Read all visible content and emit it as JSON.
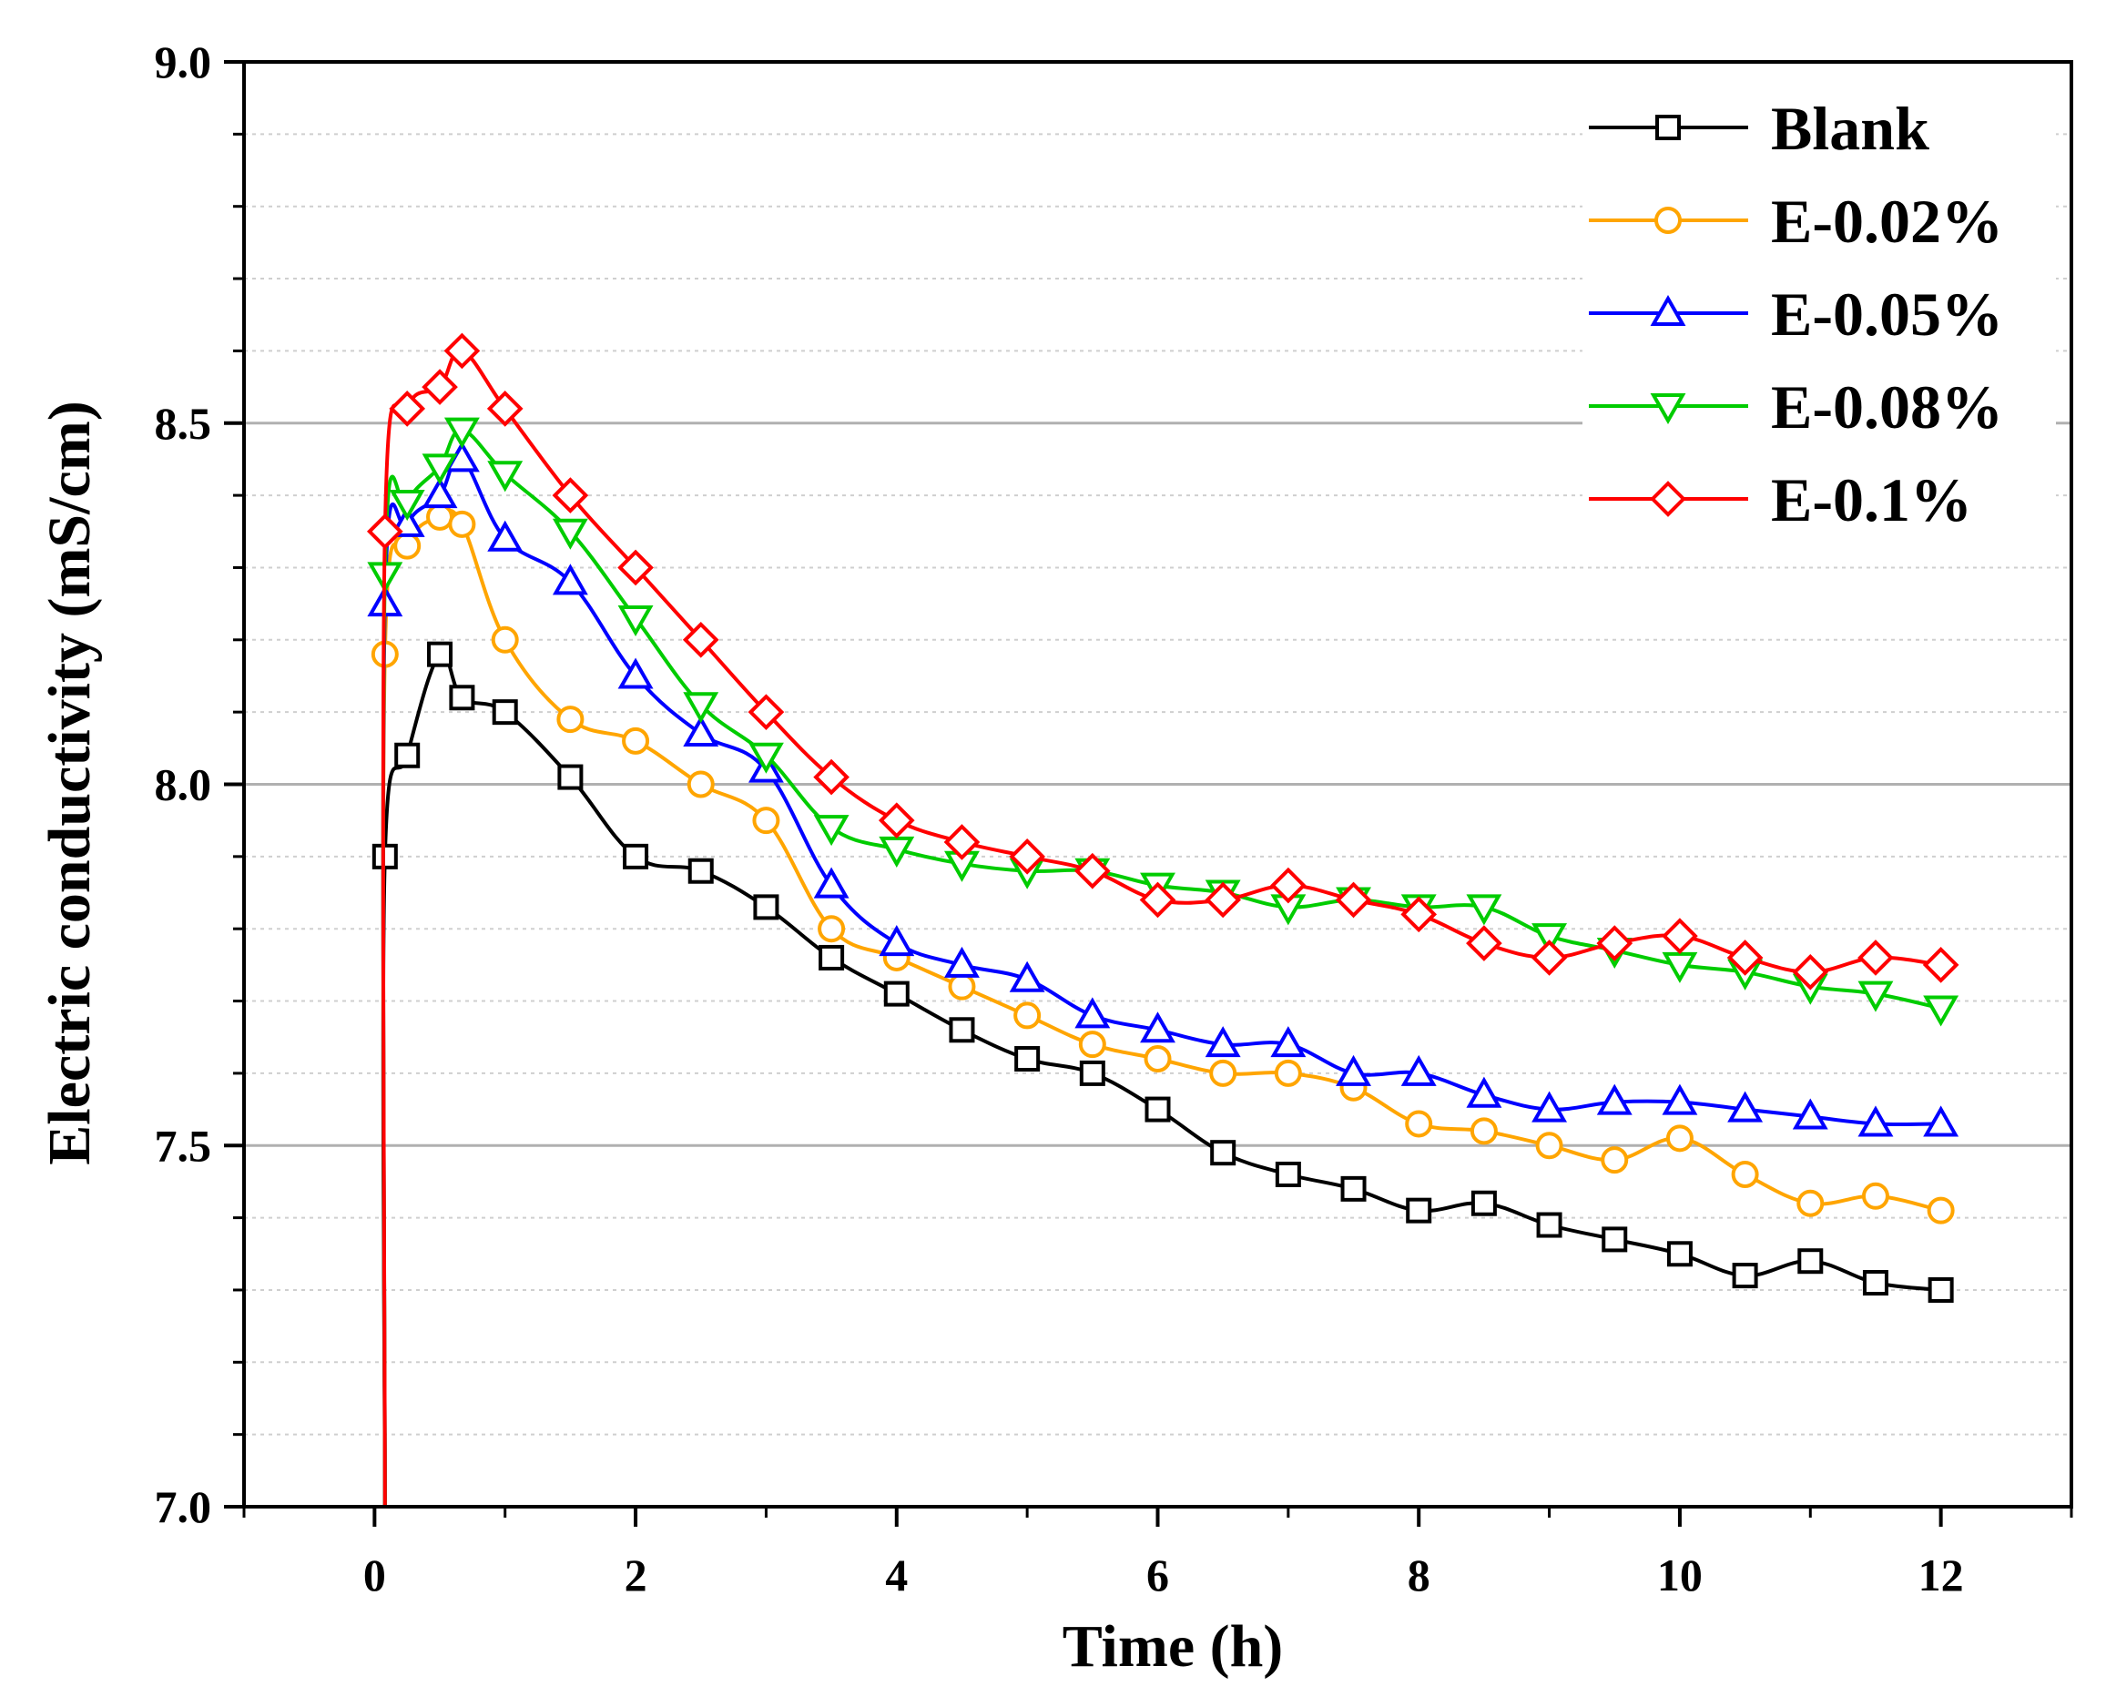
{
  "chart_data": {
    "type": "line",
    "title": "",
    "xlabel": "Time (h)",
    "ylabel": "Electric conductivity (mS/cm)",
    "xlim": [
      -1,
      13
    ],
    "ylim": [
      7.0,
      9.0
    ],
    "xticks": [
      0,
      2,
      4,
      6,
      8,
      10,
      12
    ],
    "xtick_labels": [
      "0",
      "2",
      "4",
      "6",
      "8",
      "10",
      "12"
    ],
    "yticks": [
      7.0,
      7.5,
      8.0,
      8.5,
      9.0
    ],
    "ytick_labels": [
      "7.0",
      "7.5",
      "8.0",
      "8.5",
      "9.0"
    ],
    "grid": {
      "major_y": true,
      "minor_y": true,
      "x": false
    },
    "legend_position": "top-right",
    "series": [
      {
        "name": "Blank",
        "color": "#000000",
        "marker": "square",
        "x": [
          0.08,
          0.25,
          0.5,
          0.67,
          1,
          1.5,
          2,
          2.5,
          3,
          3.5,
          4,
          4.5,
          5,
          5.5,
          6,
          6.5,
          7,
          7.5,
          8,
          8.5,
          9,
          9.5,
          10,
          10.5,
          11,
          11.5,
          12
        ],
        "y": [
          7.9,
          8.04,
          8.18,
          8.12,
          8.1,
          8.01,
          7.9,
          7.88,
          7.83,
          7.76,
          7.71,
          7.66,
          7.62,
          7.6,
          7.55,
          7.49,
          7.46,
          7.44,
          7.41,
          7.42,
          7.39,
          7.37,
          7.35,
          7.32,
          7.34,
          7.31,
          7.3
        ]
      },
      {
        "name": "E-0.02%",
        "color": "#FFA500",
        "marker": "circle",
        "x": [
          0.08,
          0.25,
          0.5,
          0.67,
          1,
          1.5,
          2,
          2.5,
          3,
          3.5,
          4,
          4.5,
          5,
          5.5,
          6,
          6.5,
          7,
          7.5,
          8,
          8.5,
          9,
          9.5,
          10,
          10.5,
          11,
          11.5,
          12
        ],
        "y": [
          8.18,
          8.33,
          8.37,
          8.36,
          8.2,
          8.09,
          8.06,
          8.0,
          7.95,
          7.8,
          7.76,
          7.72,
          7.68,
          7.64,
          7.62,
          7.6,
          7.6,
          7.58,
          7.53,
          7.52,
          7.5,
          7.48,
          7.51,
          7.46,
          7.42,
          7.43,
          7.41
        ]
      },
      {
        "name": "E-0.05%",
        "color": "#0000FF",
        "marker": "triangle-up",
        "x": [
          0.08,
          0.25,
          0.5,
          0.67,
          1,
          1.5,
          2,
          2.5,
          3,
          3.5,
          4,
          4.5,
          5,
          5.5,
          6,
          6.5,
          7,
          7.5,
          8,
          8.5,
          9,
          9.5,
          10,
          10.5,
          11,
          11.5,
          12
        ],
        "y": [
          8.25,
          8.36,
          8.4,
          8.45,
          8.34,
          8.28,
          8.15,
          8.07,
          8.02,
          7.86,
          7.78,
          7.75,
          7.73,
          7.68,
          7.66,
          7.64,
          7.64,
          7.6,
          7.6,
          7.57,
          7.55,
          7.56,
          7.56,
          7.55,
          7.54,
          7.53,
          7.53
        ]
      },
      {
        "name": "E-0.08%",
        "color": "#00CC00",
        "marker": "triangle-down",
        "x": [
          0.08,
          0.25,
          0.5,
          0.67,
          1,
          1.5,
          2,
          2.5,
          3,
          3.5,
          4,
          4.5,
          5,
          5.5,
          6,
          6.5,
          7,
          7.5,
          8,
          8.5,
          9,
          9.5,
          10,
          10.5,
          11,
          11.5,
          12
        ],
        "y": [
          8.29,
          8.39,
          8.44,
          8.49,
          8.43,
          8.35,
          8.23,
          8.11,
          8.04,
          7.94,
          7.91,
          7.89,
          7.88,
          7.88,
          7.86,
          7.85,
          7.83,
          7.84,
          7.83,
          7.83,
          7.79,
          7.77,
          7.75,
          7.74,
          7.72,
          7.71,
          7.69
        ]
      },
      {
        "name": "E-0.1%",
        "color": "#FF0000",
        "marker": "diamond",
        "x": [
          0.08,
          0.25,
          0.5,
          0.67,
          1,
          1.5,
          2,
          2.5,
          3,
          3.5,
          4,
          4.5,
          5,
          5.5,
          6,
          6.5,
          7,
          7.5,
          8,
          8.5,
          9,
          9.5,
          10,
          10.5,
          11,
          11.5,
          12
        ],
        "y": [
          8.35,
          8.52,
          8.55,
          8.6,
          8.52,
          8.4,
          8.3,
          8.2,
          8.1,
          8.01,
          7.95,
          7.92,
          7.9,
          7.88,
          7.84,
          7.84,
          7.86,
          7.84,
          7.82,
          7.78,
          7.76,
          7.78,
          7.79,
          7.76,
          7.74,
          7.76,
          7.75
        ]
      }
    ]
  }
}
